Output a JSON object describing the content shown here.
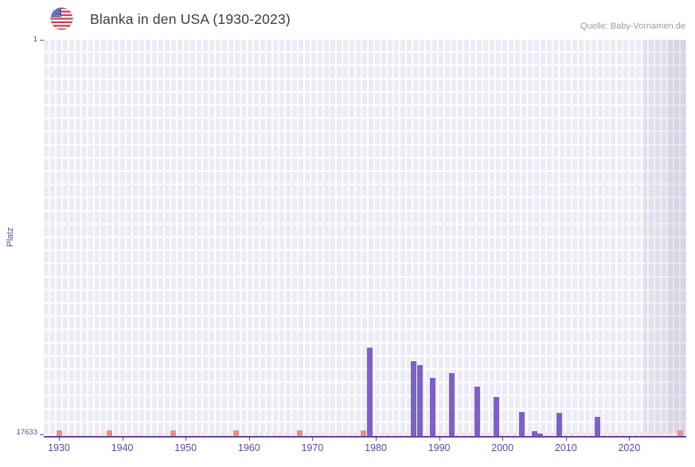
{
  "header": {
    "title": "Blanka in den USA (1930-2023)",
    "source": "Quelle: Baby-Vornamen.de",
    "flag_icon": "us-flag-icon"
  },
  "chart_data": {
    "type": "bar",
    "title": "Blanka in den USA (1930-2023)",
    "xlabel": "",
    "ylabel": "Platz",
    "y_axis": {
      "top_tick": "1",
      "bottom_tick": "17633",
      "min_rank": 1,
      "max_rank": 17633,
      "inverted": true
    },
    "x_start": 1930,
    "x_end": 2023,
    "x_ticks": [
      1930,
      1940,
      1950,
      1960,
      1970,
      1980,
      1990,
      2000,
      2010,
      2020
    ],
    "points": [
      {
        "year": 1979,
        "rank": 13700
      },
      {
        "year": 1986,
        "rank": 14300
      },
      {
        "year": 1987,
        "rank": 14480
      },
      {
        "year": 1989,
        "rank": 15050
      },
      {
        "year": 1992,
        "rank": 14830
      },
      {
        "year": 1996,
        "rank": 15440
      },
      {
        "year": 1999,
        "rank": 15900
      },
      {
        "year": 2003,
        "rank": 16570
      },
      {
        "year": 2005,
        "rank": 17420
      },
      {
        "year": 2006,
        "rank": 17520
      },
      {
        "year": 2009,
        "rank": 16600
      },
      {
        "year": 2015,
        "rank": 16780
      }
    ],
    "no_data_marker_years": [
      1930,
      1938,
      1948,
      1958,
      1968,
      1978,
      2028
    ],
    "legend": [],
    "grid": true,
    "colors": {
      "bar": "#7d62c3",
      "axis": "#5b4a9f",
      "plot_background": "#edebf6",
      "grid": "#ffffff",
      "no_data_light": "#f9e2e5",
      "no_data_dark": "#ea8e88",
      "title_text": "#3d3d3d",
      "source_text": "#9b9b9b"
    }
  }
}
